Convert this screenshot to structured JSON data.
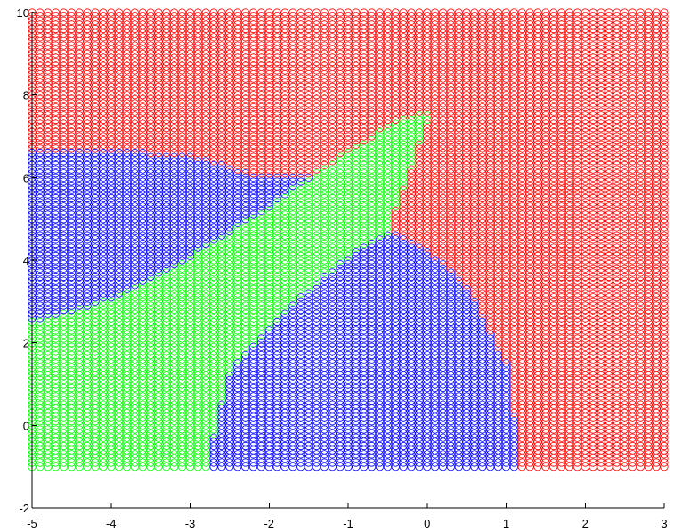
{
  "chart_data": {
    "type": "scatter",
    "marker": "circle-outline",
    "xlim": [
      -5,
      3
    ],
    "ylim": [
      -2,
      10
    ],
    "xticks": [
      "-5",
      "-4",
      "-3",
      "-2",
      "-1",
      "0",
      "1",
      "2",
      "3"
    ],
    "yticks": [
      "-2",
      "0",
      "2",
      "4",
      "6",
      "8",
      "10"
    ],
    "grid": false,
    "legend": "none",
    "grid_points": {
      "x_range": [
        -5,
        3
      ],
      "y_range": [
        -1,
        10
      ],
      "step": 0.1
    },
    "classes": [
      {
        "label": "region-red",
        "color": "#ff0000"
      },
      {
        "label": "region-blue",
        "color": "#0000ff"
      },
      {
        "label": "region-green",
        "color": "#00ff00"
      }
    ],
    "region_boundaries": {
      "green_wedge_upper": [
        [
          -5,
          2.55
        ],
        [
          -4,
          3.05
        ],
        [
          -3,
          4.1
        ],
        [
          -2,
          5.3
        ],
        [
          -1,
          6.65
        ],
        [
          -0.3,
          7.45
        ],
        [
          0.05,
          7.6
        ]
      ],
      "green_wedge_lower": [
        [
          -2.8,
          -1
        ],
        [
          -2.5,
          1.3
        ],
        [
          -2,
          2.4
        ],
        [
          -1.5,
          3.3
        ],
        [
          -1,
          4.1
        ],
        [
          -0.5,
          4.7
        ],
        [
          0.05,
          7.6
        ]
      ],
      "blue_top_edge": [
        [
          -5,
          6.65
        ],
        [
          -4,
          6.65
        ],
        [
          -3,
          6.55
        ],
        [
          -2.25,
          6.1
        ]
      ],
      "blue_right_edge": [
        [
          -0.5,
          4.7
        ],
        [
          0,
          4.25
        ],
        [
          0.5,
          3.4
        ],
        [
          1,
          1.5
        ],
        [
          1.2,
          -1
        ]
      ],
      "red_lower_left_edge": [
        [
          0.05,
          7.6
        ],
        [
          -0.05,
          6.5
        ],
        [
          -0.5,
          4.7
        ]
      ]
    }
  }
}
